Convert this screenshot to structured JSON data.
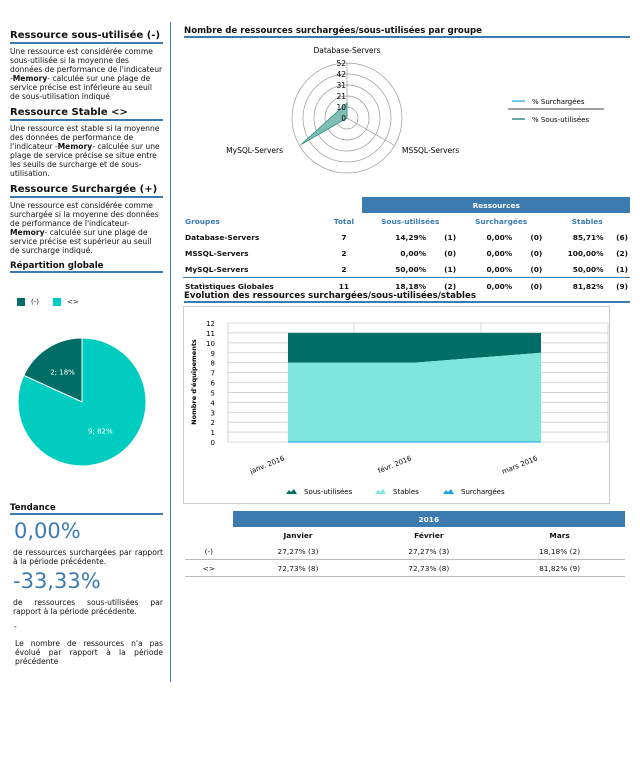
{
  "left": {
    "sections": [
      {
        "title": "Ressource sous-utilisée (-)",
        "pre": "Une ressource est considérée comme sous-utilisée si la moyenne des données de performance de l'indicateur -",
        "bold": "Memory",
        "post": "- calculée sur une plage de service précise est inférieure au seuil de sous-utilisation indiqué"
      },
      {
        "title": "Ressource Stable <>",
        "pre": "Une ressource est stable si la moyenne des données de performance de l'indicateur -",
        "bold": "Memory",
        "post": "- calculée sur une plage de service précise se situe entre les seuils de surcharge et de sous-utilisation."
      },
      {
        "title": "Ressource Surchargée (+)",
        "pre": "Une ressource est considérée comme surchargée si la moyenne des données de performance de l'indicateur-",
        "bold": "Memory",
        "post": "- calculée sur une plage de service précise est supérieur au seuil de surcharge indiqué."
      }
    ],
    "repartition": {
      "title": "Répartition globale",
      "legend": [
        "(-)",
        "<>"
      ],
      "slices": [
        {
          "label": "2; 18%",
          "value": 2,
          "color": "#006e66"
        },
        {
          "label": "9; 82%",
          "value": 9,
          "color": "#00cdbf"
        }
      ]
    },
    "tendance": {
      "title": "Tendance",
      "v1": "0,00%",
      "t1": "de ressources surchargées par rapport à la période précédente.",
      "v2": "-33,33%",
      "t2": "de ressources sous-utilisées par rapport à la période précédente.",
      "dash": "-",
      "t3": "Le nombre de ressources n'a pas évolué par rapport à la période précédente"
    }
  },
  "radar": {
    "title": "Nombre de ressources surchargées/sous-utilisées par groupe",
    "axes": [
      "Database-Servers",
      "MSSQL-Servers",
      "MySQL-Servers"
    ],
    "ticks": [
      "0",
      "10",
      "21",
      "31",
      "42",
      "52"
    ],
    "max": 52,
    "sous": [
      14.29,
      0,
      50
    ],
    "surch": [
      0,
      0,
      0
    ],
    "legend": [
      "% Surchargées",
      "% Sous-utilisées"
    ],
    "colors": {
      "surch": "#1aa3e0",
      "sous": "#006e66"
    }
  },
  "table": {
    "band": "Ressources",
    "headers": [
      "Groupes",
      "Total",
      "Sous-utilisées",
      "Surchargées",
      "Stables"
    ],
    "rows": [
      [
        "Database-Servers",
        "7",
        "14,29%",
        "(1)",
        "0,00%",
        "(0)",
        "85,71%",
        "(6)"
      ],
      [
        "MSSQL-Servers",
        "2",
        "0,00%",
        "(0)",
        "0,00%",
        "(0)",
        "100,00%",
        "(2)"
      ],
      [
        "MySQL-Servers",
        "2",
        "50,00%",
        "(1)",
        "0,00%",
        "(0)",
        "50,00%",
        "(1)"
      ]
    ],
    "total": [
      "Statistiques Globales",
      "11",
      "18,18%",
      "(2)",
      "0,00%",
      "(0)",
      "81,82%",
      "(9)"
    ]
  },
  "area": {
    "title": "Evolution des ressources surchargées/sous-utilisées/stables",
    "ylabel": "Nombre d'équipements",
    "categories": [
      "janv. 2016",
      "févr. 2016",
      "mars 2016"
    ],
    "ylim": [
      0,
      12
    ],
    "series": [
      {
        "name": "Sous-utilisées",
        "values": [
          3,
          3,
          2
        ],
        "color": "#006e66"
      },
      {
        "name": "Stables",
        "values": [
          8,
          8,
          9
        ],
        "color": "#7ee6de"
      },
      {
        "name": "Surchargées",
        "values": [
          0,
          0,
          0
        ],
        "color": "#1aa3e0"
      }
    ]
  },
  "monthly": {
    "year": "2016",
    "months": [
      "Janvier",
      "Février",
      "Mars"
    ],
    "rows": [
      [
        "(-)",
        "27,27% (3)",
        "27,27% (3)",
        "18,18% (2)"
      ],
      [
        "<>",
        "72,73% (8)",
        "72,73% (8)",
        "81,82% (9)"
      ]
    ]
  }
}
